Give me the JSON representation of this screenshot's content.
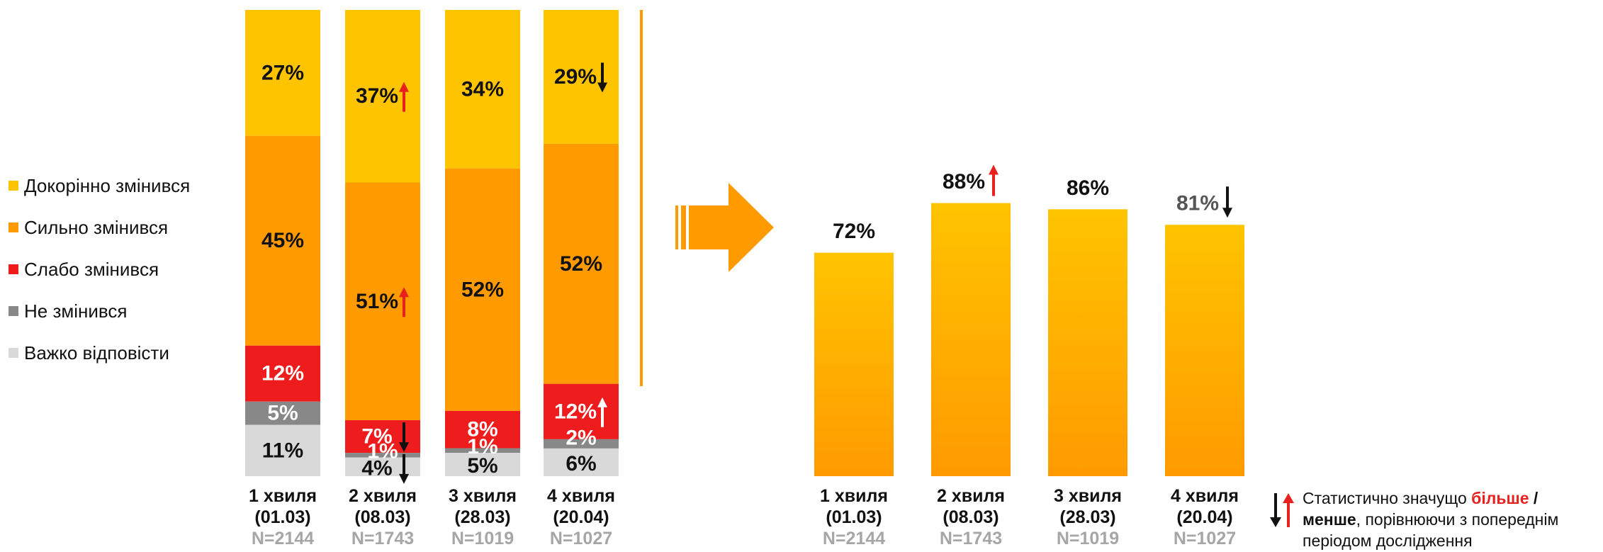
{
  "legend": [
    {
      "label": "Докорінно змінився",
      "color": "#ffc400"
    },
    {
      "label": "Сильно змінився",
      "color": "#ff9a00"
    },
    {
      "label": "Слабо змінився",
      "color": "#ee1c1c"
    },
    {
      "label": "Не змінився",
      "color": "#888888"
    },
    {
      "label": "Важко відповісти",
      "color": "#d9d9d9"
    }
  ],
  "waves": [
    {
      "label": "1 хвиля",
      "date": "(01.03)",
      "n": "N=2144"
    },
    {
      "label": "2 хвиля",
      "date": "(08.03)",
      "n": "N=1743"
    },
    {
      "label": "3 хвиля",
      "date": "(28.03)",
      "n": "N=1019"
    },
    {
      "label": "4 хвиля",
      "date": "(20.04)",
      "n": "N=1027"
    }
  ],
  "chart_data": [
    {
      "type": "bar",
      "stacked": true,
      "categories": [
        "1 хвиля (01.03) N=2144",
        "2 хвиля (08.03) N=1743",
        "3 хвиля (28.03) N=1019",
        "4 хвиля (20.04) N=1027"
      ],
      "series": [
        {
          "name": "Докорінно змінився",
          "color": "#ffc400",
          "values": [
            27,
            37,
            34,
            29
          ],
          "labels": [
            "27%",
            "37%",
            "34%",
            "29%"
          ],
          "changes": [
            null,
            "up",
            null,
            "down"
          ]
        },
        {
          "name": "Сильно змінився",
          "color": "#ff9a00",
          "values": [
            45,
            51,
            52,
            52
          ],
          "labels": [
            "45%",
            "51%",
            "52%",
            "52%"
          ],
          "changes": [
            null,
            "up",
            null,
            null
          ]
        },
        {
          "name": "Слабо змінився",
          "color": "#ee1c1c",
          "values": [
            12,
            7,
            8,
            12
          ],
          "labels": [
            "12%",
            "7%",
            "8%",
            "12%"
          ],
          "changes": [
            null,
            "down",
            null,
            "up"
          ]
        },
        {
          "name": "Не змінився",
          "color": "#888888",
          "values": [
            5,
            1,
            1,
            2
          ],
          "labels": [
            "5%",
            "1%",
            "1%",
            "2%"
          ],
          "changes": [
            null,
            null,
            null,
            null
          ]
        },
        {
          "name": "Важко відповісти",
          "color": "#d9d9d9",
          "values": [
            11,
            4,
            5,
            6
          ],
          "labels": [
            "11%",
            "4%",
            "5%",
            "6%"
          ],
          "changes": [
            null,
            "down",
            null,
            null
          ]
        }
      ],
      "ylim": [
        0,
        100
      ]
    },
    {
      "type": "bar",
      "categories": [
        "1 хвиля (01.03) N=2144",
        "2 хвиля (08.03) N=1743",
        "3 хвиля (28.03) N=1019",
        "4 хвиля (20.04) N=1027"
      ],
      "values": [
        72,
        88,
        86,
        81
      ],
      "labels": [
        "72%",
        "88%",
        "86%",
        "81%"
      ],
      "changes": [
        null,
        "up",
        null,
        "down"
      ],
      "ylim": [
        0,
        100
      ]
    }
  ],
  "note": {
    "prefix": "Статистично значущо ",
    "more": "більше",
    "sep": " /",
    "less": "менше",
    "suffix": ", порівнюючи з попереднім періодом дослідження"
  },
  "colors": {
    "up": "#e8201e",
    "down": "#111111",
    "arrow": "#ff9a00",
    "divider": "#ff9a00",
    "n_text": "#a6a6a6"
  }
}
